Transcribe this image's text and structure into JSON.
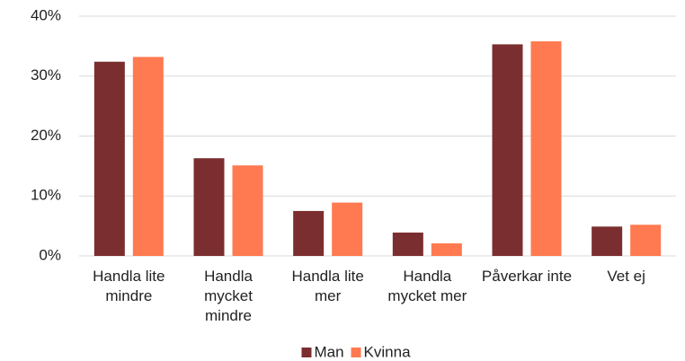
{
  "chart_data": {
    "type": "bar",
    "categories": [
      "Handla lite mindre",
      "Handla mycket mindre",
      "Handla lite mer",
      "Handla mycket mer",
      "Påverkar inte",
      "Vet ej"
    ],
    "series": [
      {
        "name": "Man",
        "color": "#7b2e2f",
        "values": [
          32.4,
          16.3,
          7.5,
          3.9,
          35.3,
          4.9
        ]
      },
      {
        "name": "Kvinna",
        "color": "#ff7a50",
        "values": [
          33.2,
          15.1,
          8.9,
          2.1,
          35.8,
          5.2
        ]
      }
    ],
    "ylim": [
      0,
      40
    ],
    "yticks": [
      {
        "value": 0,
        "label": "0%"
      },
      {
        "value": 10,
        "label": "10%"
      },
      {
        "value": 20,
        "label": "20%"
      },
      {
        "value": 30,
        "label": "30%"
      },
      {
        "value": 40,
        "label": "40%"
      }
    ],
    "grid": true,
    "legend": "bottom"
  }
}
